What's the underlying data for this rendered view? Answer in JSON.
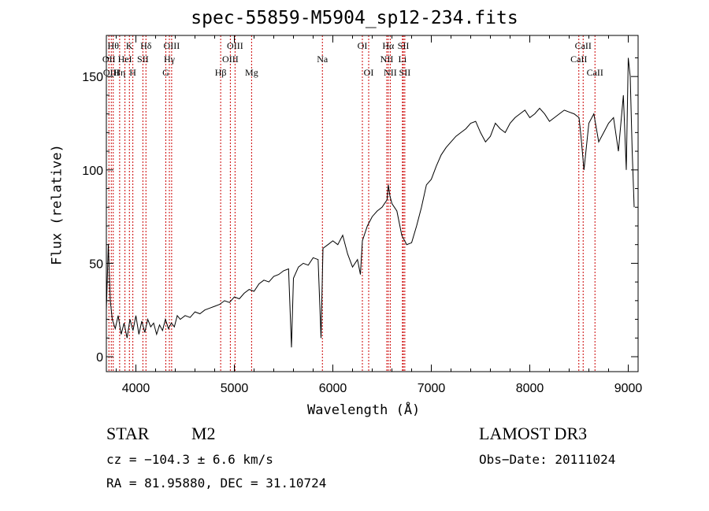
{
  "chart_data": {
    "type": "line",
    "title": "spec-55859-M5904_sp12-234.fits",
    "xlabel": "Wavelength (Å)",
    "ylabel": "Flux (relative)",
    "xlim": [
      3700,
      9100
    ],
    "ylim": [
      -8,
      172
    ],
    "x_ticks": [
      4000,
      5000,
      6000,
      7000,
      8000,
      9000
    ],
    "y_ticks": [
      0,
      50,
      100,
      150
    ],
    "line_color": "#000000",
    "marker_color": "#cc0000",
    "series": [
      {
        "name": "flux",
        "x": [
          3700,
          3720,
          3740,
          3760,
          3790,
          3820,
          3850,
          3880,
          3910,
          3940,
          3970,
          4000,
          4030,
          4060,
          4090,
          4120,
          4150,
          4180,
          4210,
          4240,
          4270,
          4300,
          4330,
          4360,
          4390,
          4420,
          4450,
          4500,
          4550,
          4600,
          4650,
          4700,
          4750,
          4800,
          4850,
          4900,
          4950,
          5000,
          5050,
          5100,
          5150,
          5200,
          5250,
          5300,
          5350,
          5400,
          5450,
          5500,
          5550,
          5580,
          5600,
          5650,
          5700,
          5750,
          5800,
          5850,
          5880,
          5890,
          5900,
          5950,
          6000,
          6050,
          6100,
          6150,
          6200,
          6250,
          6280,
          6300,
          6350,
          6400,
          6450,
          6500,
          6550,
          6563,
          6580,
          6600,
          6650,
          6700,
          6750,
          6800,
          6850,
          6900,
          6950,
          7000,
          7050,
          7100,
          7150,
          7200,
          7250,
          7300,
          7350,
          7400,
          7450,
          7500,
          7550,
          7600,
          7650,
          7700,
          7750,
          7800,
          7850,
          7900,
          7950,
          8000,
          8050,
          8100,
          8150,
          8200,
          8250,
          8300,
          8350,
          8400,
          8450,
          8500,
          8520,
          8550,
          8600,
          8650,
          8700,
          8750,
          8800,
          8850,
          8900,
          8950,
          8980,
          9000,
          9020,
          9040,
          9060
        ],
        "y": [
          25,
          60,
          30,
          20,
          15,
          22,
          12,
          18,
          10,
          20,
          14,
          22,
          12,
          19,
          13,
          20,
          16,
          18,
          12,
          17,
          14,
          20,
          15,
          18,
          16,
          22,
          20,
          22,
          21,
          24,
          23,
          25,
          26,
          27,
          28,
          30,
          29,
          32,
          31,
          34,
          36,
          35,
          39,
          41,
          40,
          43,
          44,
          46,
          47,
          5,
          42,
          48,
          50,
          49,
          53,
          52,
          10,
          35,
          58,
          60,
          62,
          60,
          65,
          55,
          48,
          52,
          44,
          62,
          70,
          75,
          78,
          80,
          84,
          92,
          86,
          82,
          78,
          65,
          60,
          61,
          70,
          80,
          92,
          95,
          102,
          108,
          112,
          115,
          118,
          120,
          122,
          125,
          126,
          120,
          115,
          118,
          125,
          122,
          120,
          125,
          128,
          130,
          132,
          128,
          130,
          133,
          130,
          126,
          128,
          130,
          132,
          131,
          130,
          128,
          118,
          100,
          125,
          130,
          115,
          120,
          125,
          128,
          110,
          140,
          100,
          160,
          150,
          110,
          80
        ]
      }
    ],
    "line_markers": [
      {
        "wl": 3726,
        "name": "OII",
        "row": 1
      },
      {
        "wl": 3750,
        "name": "OIII",
        "row": 2
      },
      {
        "wl": 3770,
        "name": "Hθ",
        "row": 0
      },
      {
        "wl": 3835,
        "name": "Hη",
        "row": 2
      },
      {
        "wl": 3889,
        "name": "HeI",
        "row": 1
      },
      {
        "wl": 3934,
        "name": "K",
        "row": 0
      },
      {
        "wl": 3969,
        "name": "H",
        "row": 2
      },
      {
        "wl": 4071,
        "name": "SII",
        "row": 1
      },
      {
        "wl": 4102,
        "name": "Hδ",
        "row": 0
      },
      {
        "wl": 4304,
        "name": "G",
        "row": 2
      },
      {
        "wl": 4340,
        "name": "Hγ",
        "row": 1
      },
      {
        "wl": 4363,
        "name": "OIII",
        "row": 0
      },
      {
        "wl": 4861,
        "name": "Hβ",
        "row": 2
      },
      {
        "wl": 4959,
        "name": "OIII",
        "row": 1
      },
      {
        "wl": 5007,
        "name": "OIII",
        "row": 0
      },
      {
        "wl": 5175,
        "name": "Mg",
        "row": 2
      },
      {
        "wl": 5894,
        "name": "Na",
        "row": 1
      },
      {
        "wl": 6300,
        "name": "OI",
        "row": 0
      },
      {
        "wl": 6364,
        "name": "OI",
        "row": 2
      },
      {
        "wl": 6548,
        "name": "NII",
        "row": 1
      },
      {
        "wl": 6563,
        "name": "Hα",
        "row": 0
      },
      {
        "wl": 6583,
        "name": "NII",
        "row": 2
      },
      {
        "wl": 6707,
        "name": "Li",
        "row": 1
      },
      {
        "wl": 6716,
        "name": "SII",
        "row": 0
      },
      {
        "wl": 6731,
        "name": "SII",
        "row": 2
      },
      {
        "wl": 8498,
        "name": "CaII",
        "row": 1
      },
      {
        "wl": 8542,
        "name": "CaII",
        "row": 0
      },
      {
        "wl": 8662,
        "name": "CaII",
        "row": 2
      }
    ]
  },
  "info": {
    "class": "STAR",
    "subclass": "M2",
    "survey": "LAMOST DR3",
    "cz": "cz = −104.3 ± 6.6 km/s",
    "obs_date": "Obs−Date: 20111024",
    "coords": "RA =  81.95880, DEC =  31.10724"
  }
}
